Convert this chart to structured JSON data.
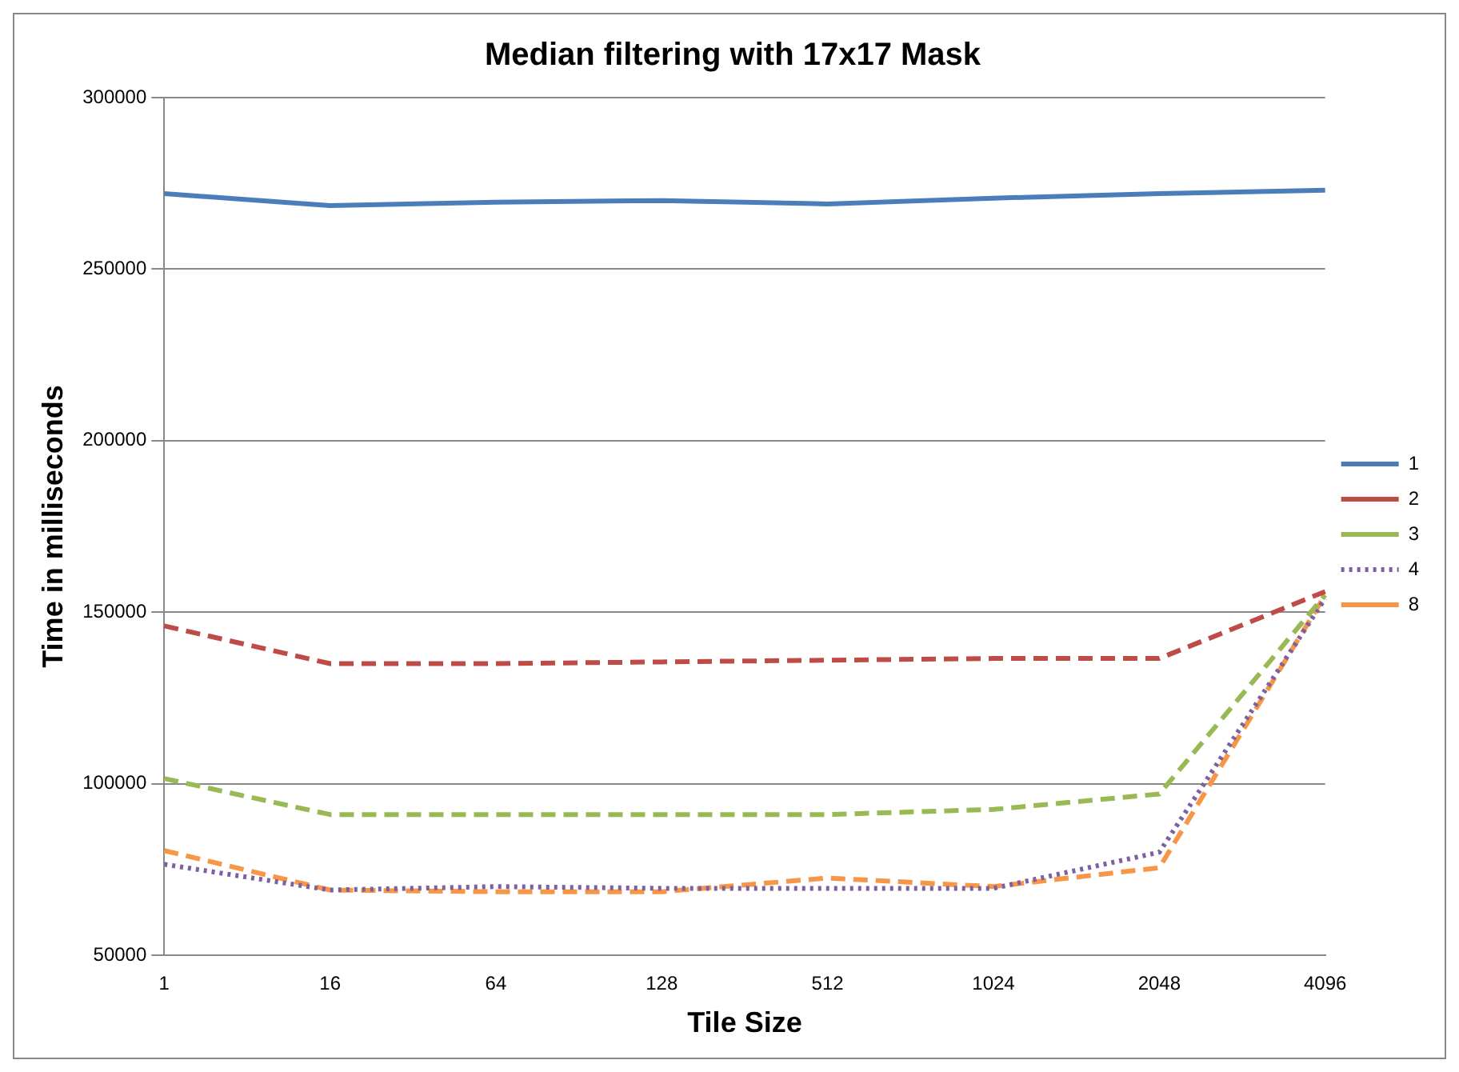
{
  "chart_data": {
    "type": "line",
    "title": "Median filtering with 17x17 Mask",
    "xlabel": "Tile Size",
    "ylabel": "Time in milliseconds",
    "categories": [
      "1",
      "16",
      "64",
      "128",
      "512",
      "1024",
      "2048",
      "4096"
    ],
    "series": [
      {
        "name": "1",
        "color": "#4a7ebb",
        "line_style": "solid",
        "values": [
          272000,
          268500,
          269500,
          270000,
          269000,
          270700,
          272000,
          273000
        ]
      },
      {
        "name": "2",
        "color": "#be4b48",
        "line_style": "dashed",
        "values": [
          146000,
          135000,
          135000,
          135500,
          136000,
          136500,
          136500,
          156000
        ]
      },
      {
        "name": "3",
        "color": "#98b954",
        "line_style": "dashed",
        "values": [
          101500,
          91000,
          91000,
          91000,
          91000,
          92500,
          97000,
          155000
        ]
      },
      {
        "name": "4",
        "color": "#7d60a0",
        "line_style": "dotted",
        "values": [
          76500,
          69000,
          70000,
          69500,
          69500,
          69500,
          80000,
          154000
        ]
      },
      {
        "name": "8",
        "color": "#f79646",
        "line_style": "dashed",
        "values": [
          80500,
          69000,
          68500,
          68500,
          72500,
          70000,
          75500,
          155000
        ]
      }
    ],
    "ylim": [
      50000,
      300000
    ],
    "yticks": [
      50000,
      100000,
      150000,
      200000,
      250000,
      300000
    ],
    "grid": "y",
    "legend": "right",
    "marker": "none"
  }
}
